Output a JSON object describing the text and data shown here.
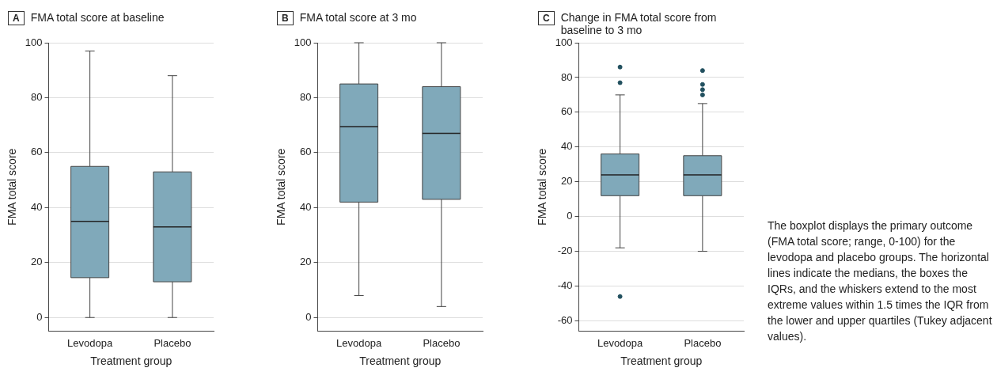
{
  "chart_data": [
    {
      "type": "box",
      "title": "FMA total score at baseline",
      "xlabel": "Treatment group",
      "ylabel": "FMA total score",
      "categories": [
        "Levodopa",
        "Placebo"
      ],
      "series": [
        {
          "color": "#80a9ba",
          "boxes": [
            {
              "low": 0,
              "q1": 14.5,
              "median": 35,
              "q3": 55,
              "high": 97
            },
            {
              "low": 0,
              "q1": 13,
              "median": 33,
              "q3": 53,
              "high": 88
            }
          ]
        }
      ],
      "ylim": [
        -5,
        100
      ],
      "yticks": [
        0,
        20,
        40,
        60,
        80,
        100
      ],
      "grid": "y",
      "annotations": [
        "A"
      ]
    },
    {
      "type": "box",
      "title": "FMA total score at 3 mo",
      "xlabel": "Treatment group",
      "ylabel": "FMA total score",
      "categories": [
        "Levodopa",
        "Placebo"
      ],
      "series": [
        {
          "color": "#80a9ba",
          "boxes": [
            {
              "low": 8,
              "q1": 42,
              "median": 69.5,
              "q3": 85,
              "high": 100
            },
            {
              "low": 4,
              "q1": 43,
              "median": 67,
              "q3": 84,
              "high": 100
            }
          ]
        }
      ],
      "ylim": [
        -5,
        100
      ],
      "yticks": [
        0,
        20,
        40,
        60,
        80,
        100
      ],
      "grid": "y",
      "annotations": [
        "B"
      ]
    },
    {
      "type": "box",
      "title": "Change in FMA total score from baseline to 3 mo",
      "xlabel": "Treatment group",
      "ylabel": "FMA total score",
      "categories": [
        "Levodopa",
        "Placebo"
      ],
      "series": [
        {
          "color": "#80a9ba",
          "boxes": [
            {
              "low": -18,
              "q1": 12,
              "median": 24,
              "q3": 36,
              "high": 70
            },
            {
              "low": -20,
              "q1": 12,
              "median": 24,
              "q3": 35,
              "high": 65
            }
          ]
        },
        {
          "type": "scatter",
          "color": "#22505f",
          "marker": "circle",
          "x": [
            "Levodopa",
            "Levodopa",
            "Levodopa",
            "Placebo",
            "Placebo",
            "Placebo",
            "Placebo"
          ],
          "values": [
            77,
            86,
            -46,
            84,
            76,
            73,
            70
          ]
        }
      ],
      "ylim": [
        -66,
        100
      ],
      "yticks": [
        -60,
        -40,
        -20,
        0,
        20,
        40,
        60,
        80,
        100
      ],
      "grid": "y",
      "annotations": [
        "C",
        "The boxplot displays the primary outcome (FMA total score; range, 0-100) for the levodopa and placebo groups. The horizontal lines indicate the medians, the boxes the IQRs, and the whiskers extend to the most extreme values within 1.5 times the IQR from the lower and upper quartiles (Tukey adjacent values)."
      ]
    }
  ]
}
